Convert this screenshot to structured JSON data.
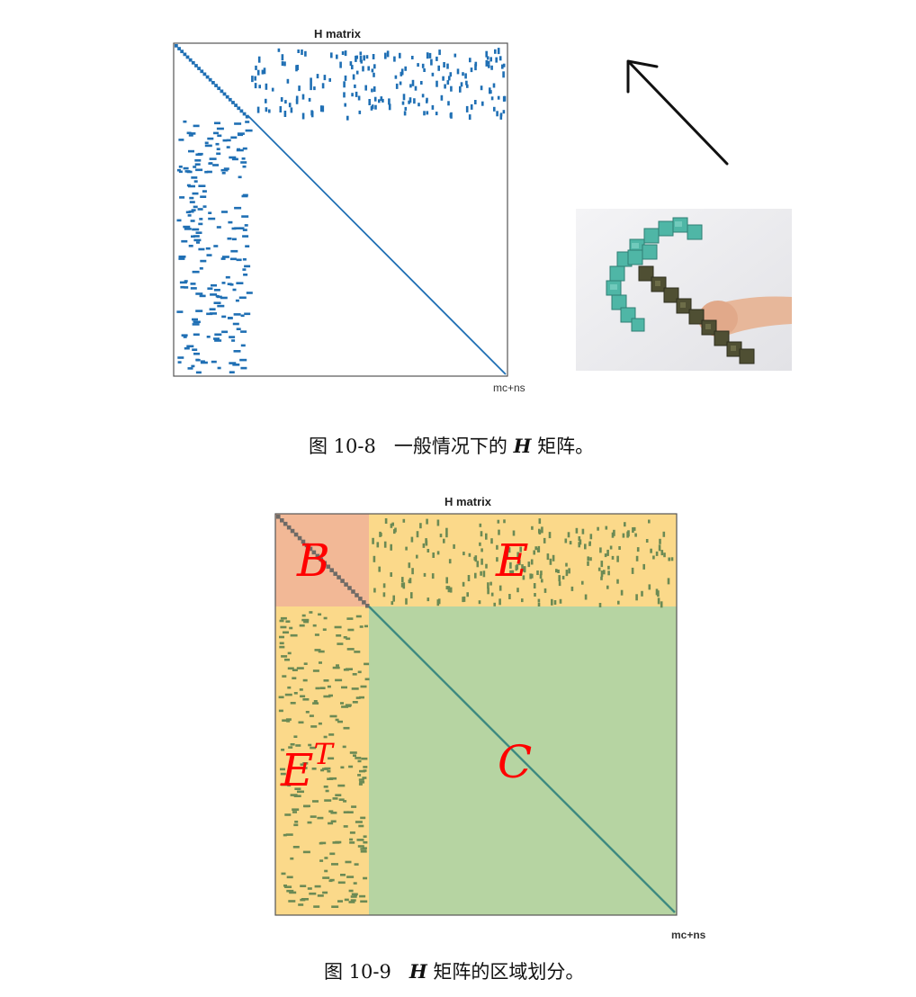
{
  "figure1": {
    "title": "H matrix",
    "xlabel": "mc+ns",
    "caption_prefix": "图 10-8",
    "caption_text": "一般情况下的",
    "caption_symbol": "H",
    "caption_suffix": "矩阵。",
    "colors": {
      "entries": "#1f6fb4",
      "border": "#555555"
    }
  },
  "illustration": {
    "arrow_icon": "arrow-up-left-icon",
    "photo_description_icon": "pickaxe-photo-icon",
    "colors": {
      "teal": "#4fb6a6",
      "handle": "#5b5a3a",
      "background": "#eeeeee"
    }
  },
  "figure2": {
    "title": "H matrix",
    "xlabel": "mc+ns",
    "caption_prefix": "图 10-9",
    "caption_symbol": "H",
    "caption_suffix": "矩阵的区域划分。",
    "regions": {
      "B": "B",
      "E": "E",
      "ET_base": "E",
      "ET_sup": "T",
      "C": "C"
    },
    "colors": {
      "B": "#f2b896",
      "E": "#fbd98a",
      "C": "#b6d4a2",
      "entries": "#6b8a54",
      "diagonal": "#3e8a80",
      "label": "#ff0000"
    }
  }
}
